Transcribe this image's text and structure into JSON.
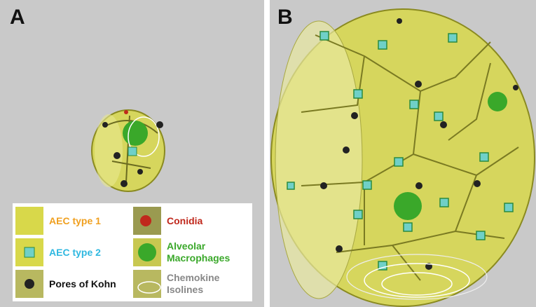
{
  "panels": [
    {
      "label": "A"
    },
    {
      "label": "B"
    }
  ],
  "legend": {
    "items": [
      {
        "label": "AEC type 1",
        "color": "#f0a020"
      },
      {
        "label": "AEC type 2",
        "color": "#30b8e0"
      },
      {
        "label": "Pores of Kohn",
        "color": "#111111"
      },
      {
        "label": "Conidia",
        "color": "#c0281c"
      },
      {
        "label": "Alveolar Macrophages",
        "color": "#3aa82a"
      },
      {
        "label": "Chemokine Isolines",
        "color": "#888888"
      }
    ]
  }
}
